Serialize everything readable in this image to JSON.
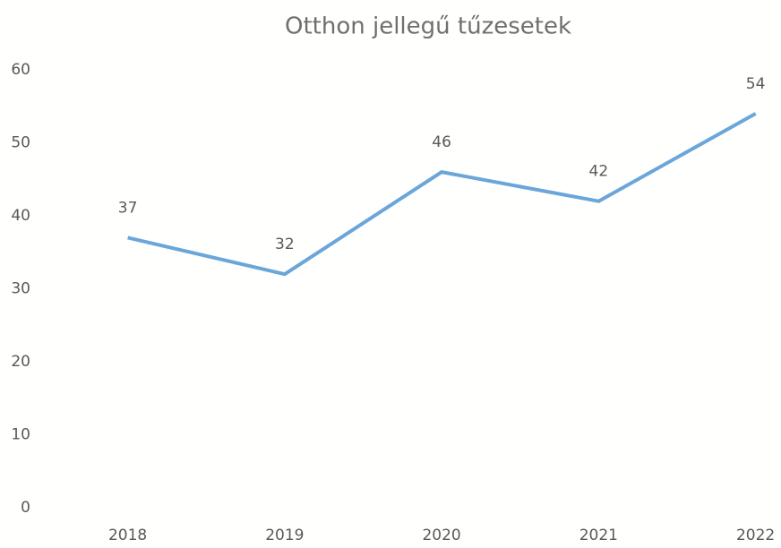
{
  "chart_data": {
    "type": "line",
    "title": "Otthon jellegű tűzesetek",
    "categories": [
      "2018",
      "2019",
      "2020",
      "2021",
      "2022"
    ],
    "values": [
      37,
      32,
      46,
      42,
      54
    ],
    "color": "#6aa6d9",
    "ylim": [
      0,
      60
    ],
    "yticks": [
      0,
      10,
      20,
      30,
      40,
      50,
      60
    ],
    "grid": false
  }
}
